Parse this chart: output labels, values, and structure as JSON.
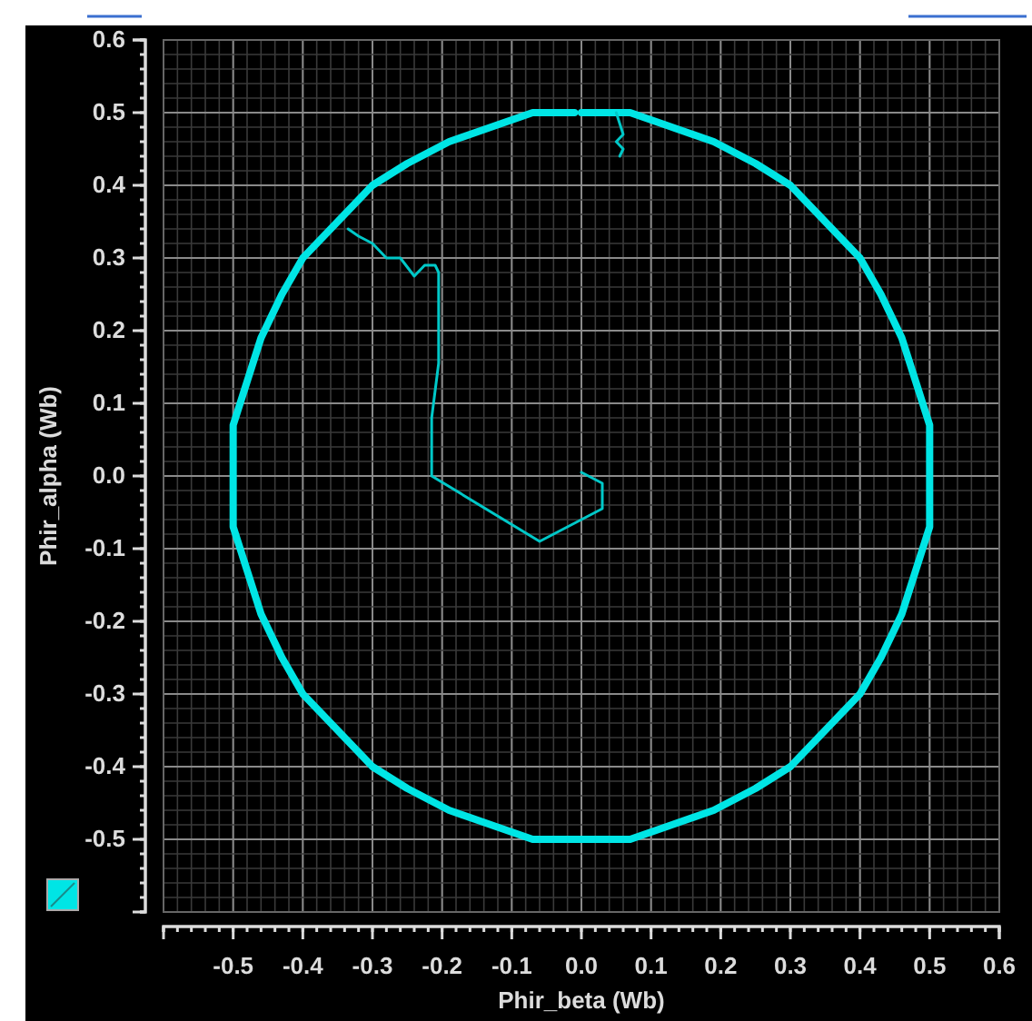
{
  "chart_data": {
    "type": "line",
    "xlabel": "Phir_beta (Wb)",
    "ylabel": "Phir_alpha (Wb)",
    "xlim": [
      -0.6,
      0.6
    ],
    "ylim": [
      -0.6,
      0.6
    ],
    "xticks": [
      -0.5,
      -0.4,
      -0.3,
      -0.2,
      -0.1,
      {
        "value": 0,
        "label": "0.0"
      },
      0.1,
      0.2,
      0.3,
      0.4,
      0.5,
      0.6
    ],
    "yticks": [
      -0.5,
      -0.4,
      -0.3,
      -0.2,
      -0.1,
      {
        "value": 0,
        "label": "0.0"
      },
      0.1,
      0.2,
      0.3,
      0.4,
      0.5,
      0.6
    ],
    "grid": true,
    "marker": "none",
    "line_style": "solid",
    "series": [
      {
        "color": "#00e5e5",
        "x": [
          0,
          0.07,
          0.13,
          0.19,
          0.25,
          0.3,
          0.35,
          0.4,
          0.43,
          0.46,
          0.48,
          0.5,
          0.5,
          0.5,
          0.48,
          0.46,
          0.43,
          0.4,
          0.35,
          0.3,
          0.25,
          0.19,
          0.13,
          0.07,
          0,
          -0.07,
          -0.13,
          -0.19,
          -0.25,
          -0.3,
          -0.35,
          -0.4,
          -0.43,
          -0.46,
          -0.48,
          -0.5,
          -0.5,
          -0.5,
          -0.48,
          -0.46,
          -0.43,
          -0.4,
          -0.35,
          -0.3,
          -0.25,
          -0.19,
          -0.13,
          -0.07,
          -0.01
        ],
        "values": [
          0.5,
          0.5,
          0.48,
          0.46,
          0.43,
          0.4,
          0.35,
          0.3,
          0.25,
          0.19,
          0.13,
          0.07,
          0,
          -0.07,
          -0.13,
          -0.19,
          -0.25,
          -0.3,
          -0.35,
          -0.4,
          -0.43,
          -0.46,
          -0.48,
          -0.5,
          -0.5,
          -0.5,
          -0.48,
          -0.46,
          -0.43,
          -0.4,
          -0.35,
          -0.3,
          -0.25,
          -0.19,
          -0.13,
          -0.07,
          0,
          0.07,
          0.13,
          0.19,
          0.25,
          0.3,
          0.35,
          0.4,
          0.43,
          0.46,
          0.48,
          0.5,
          0.5
        ]
      },
      {
        "color": "#00c8c8",
        "x": [
          0,
          0.03,
          0.03,
          -0.06,
          -0.215,
          -0.215,
          -0.205,
          -0.205,
          -0.21,
          -0.225,
          -0.24,
          -0.26,
          -0.28,
          -0.3,
          -0.32,
          -0.335
        ],
        "values": [
          0.005,
          -0.01,
          -0.045,
          -0.09,
          0,
          0.08,
          0.155,
          0.28,
          0.29,
          0.29,
          0.275,
          0.3,
          0.3,
          0.32,
          0.33,
          0.34
        ]
      },
      {
        "color": "#00c8c8",
        "x": [
          0.05,
          0.06,
          0.05,
          0.06,
          0.055
        ],
        "values": [
          0.5,
          0.47,
          0.46,
          0.45,
          0.44
        ]
      }
    ]
  }
}
